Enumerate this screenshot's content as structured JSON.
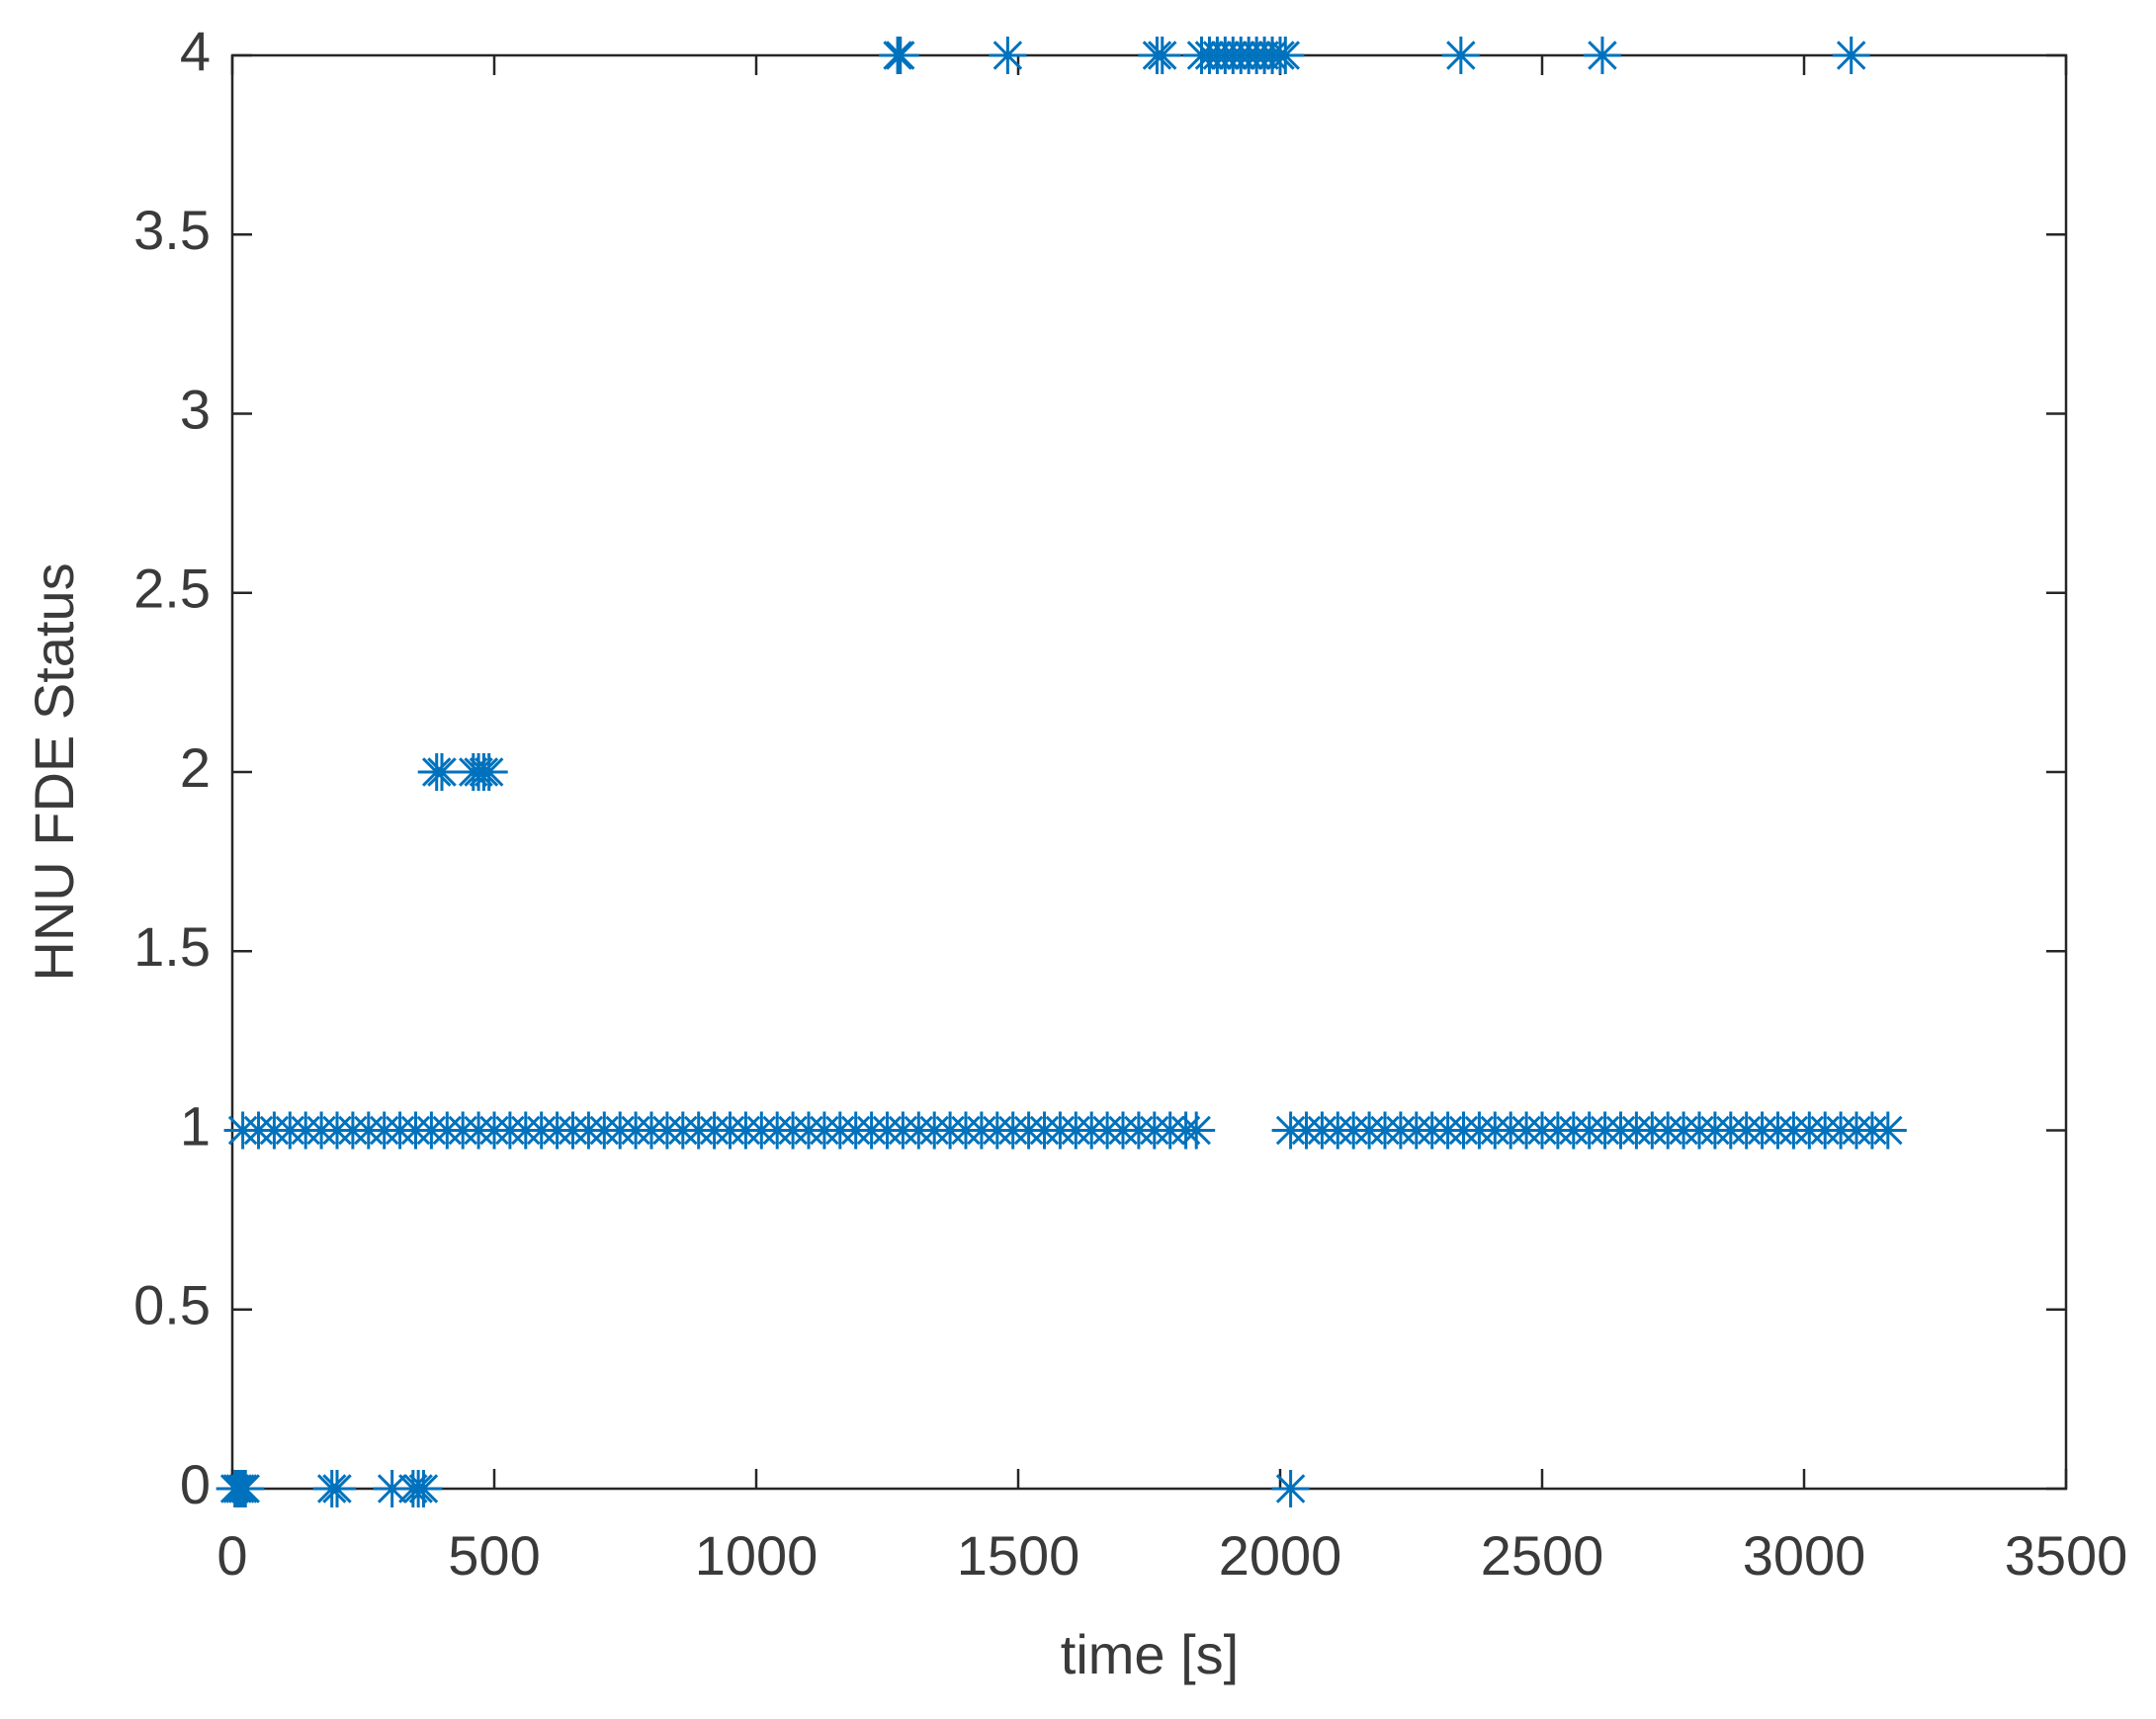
{
  "chart_data": {
    "type": "scatter",
    "color": "#0072BD",
    "marker": "asterisk",
    "xlabel": "time [s]",
    "ylabel": "HNU FDE Status",
    "xlim": [
      0,
      3500
    ],
    "xticks": [
      0,
      500,
      1000,
      1500,
      2000,
      2500,
      3000,
      3500
    ],
    "ylim": [
      0,
      4
    ],
    "yticks": [
      0,
      0.5,
      1,
      1.5,
      2,
      2.5,
      3,
      3.5,
      4
    ],
    "series": [
      {
        "x": [
          5,
          10,
          15,
          20,
          25,
          190,
          200,
          305,
          345,
          355,
          365,
          2020
        ],
        "values": [
          0,
          0,
          0,
          0,
          0,
          0,
          0,
          0,
          0,
          0,
          0,
          0
        ]
      },
      {
        "x": [
          390,
          400,
          460,
          470,
          480,
          490
        ],
        "values": [
          2,
          2,
          2,
          2,
          2,
          2
        ]
      },
      {
        "x": [
          1270,
          1275,
          1480,
          1765,
          1775,
          1850,
          1865,
          1880,
          1895,
          1910,
          1925,
          1940,
          1955,
          1970,
          1985,
          2000,
          2010,
          2345,
          2615,
          3090
        ],
        "values": [
          4,
          4,
          4,
          4,
          4,
          4,
          4,
          4,
          4,
          4,
          4,
          4,
          4,
          4,
          4,
          4,
          4,
          4,
          4,
          4
        ]
      },
      {
        "x": [
          20,
          50,
          80,
          110,
          140,
          170,
          200,
          230,
          260,
          290,
          320,
          350,
          380,
          410,
          440,
          470,
          500,
          530,
          560,
          590,
          620,
          650,
          680,
          710,
          740,
          770,
          800,
          830,
          860,
          890,
          920,
          950,
          980,
          1010,
          1040,
          1070,
          1100,
          1130,
          1160,
          1190,
          1220,
          1250,
          1280,
          1310,
          1340,
          1370,
          1400,
          1430,
          1460,
          1490,
          1520,
          1550,
          1580,
          1610,
          1640,
          1670,
          1700,
          1730,
          1760,
          1790,
          1820,
          1840
        ],
        "values": [
          1,
          1,
          1,
          1,
          1,
          1,
          1,
          1,
          1,
          1,
          1,
          1,
          1,
          1,
          1,
          1,
          1,
          1,
          1,
          1,
          1,
          1,
          1,
          1,
          1,
          1,
          1,
          1,
          1,
          1,
          1,
          1,
          1,
          1,
          1,
          1,
          1,
          1,
          1,
          1,
          1,
          1,
          1,
          1,
          1,
          1,
          1,
          1,
          1,
          1,
          1,
          1,
          1,
          1,
          1,
          1,
          1,
          1,
          1,
          1,
          1,
          1
        ]
      },
      {
        "x": [
          2020,
          2050,
          2080,
          2110,
          2140,
          2170,
          2200,
          2230,
          2260,
          2290,
          2320,
          2350,
          2380,
          2410,
          2440,
          2470,
          2500,
          2530,
          2560,
          2590,
          2620,
          2650,
          2680,
          2710,
          2740,
          2770,
          2800,
          2830,
          2860,
          2890,
          2920,
          2950,
          2980,
          3010,
          3040,
          3070,
          3100,
          3130,
          3160
        ],
        "values": [
          1,
          1,
          1,
          1,
          1,
          1,
          1,
          1,
          1,
          1,
          1,
          1,
          1,
          1,
          1,
          1,
          1,
          1,
          1,
          1,
          1,
          1,
          1,
          1,
          1,
          1,
          1,
          1,
          1,
          1,
          1,
          1,
          1,
          1,
          1,
          1,
          1,
          1,
          1
        ]
      }
    ]
  }
}
